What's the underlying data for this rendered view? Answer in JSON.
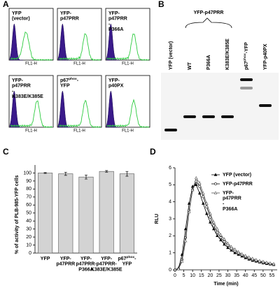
{
  "panels": {
    "a": {
      "letter": "A",
      "x_label": "FL1-H",
      "plots": [
        "YFP (vector)",
        "YFP-p47PRR",
        "YFP-p47PRR -P366A",
        "YFP-p47PRR -K383E/K385E",
        "p67phox-YFP",
        "YFP-p40PX"
      ]
    },
    "b": {
      "letter": "B",
      "group": "YFP-p47PRR",
      "lanes": [
        "YFP (vector)",
        "WT",
        "P366A",
        "K383E/K385E",
        "p67phox-YFP",
        "YFP-p40PX"
      ]
    },
    "c": {
      "letter": "C"
    },
    "d": {
      "letter": "D"
    }
  },
  "chart_data": [
    {
      "type": "bar",
      "y_label": "% of activity of PLB-985-YFP cells",
      "categories": [
        "YFP",
        "YFP-p47PRR",
        "YFP-p47PRR-P366A",
        "YFP-p47PRR-K383E/K385E",
        "p67phox-YFP"
      ],
      "values": [
        100,
        99,
        95,
        102,
        99
      ],
      "errors": [
        0.5,
        2,
        2.5,
        1,
        3
      ],
      "color": "#d3d3d3",
      "ylim": [
        0,
        110
      ],
      "yticks": [
        0,
        10,
        20,
        30,
        40,
        50,
        60,
        70,
        80,
        90,
        100
      ]
    },
    {
      "type": "line",
      "x_label": "Time (min)",
      "y_label": "RLU",
      "x": [
        0,
        2,
        4,
        6,
        8,
        10,
        12,
        14,
        16,
        18,
        20,
        22,
        24,
        26,
        28,
        30,
        32,
        34,
        36,
        38,
        40,
        42,
        44,
        46,
        48,
        50,
        52,
        54,
        56
      ],
      "series": [
        {
          "name": "YFP (vector)",
          "color": "#000000",
          "marker": "filled-triangle",
          "values": [
            0,
            0.1,
            0.9,
            2.4,
            3.9,
            4.9,
            5.0,
            4.5,
            3.9,
            3.3,
            2.8,
            2.4,
            2.0,
            1.75,
            1.5,
            1.3,
            1.15,
            1.0,
            0.9,
            0.8,
            0.7,
            0.62,
            0.55,
            0.5,
            0.45,
            0.4,
            0.36,
            0.33,
            0.3
          ]
        },
        {
          "name": "YFP-p47PRR",
          "color": "#000000",
          "marker": "open-circle",
          "values": [
            0,
            0.05,
            0.6,
            1.9,
            3.5,
            4.7,
            5.2,
            4.9,
            4.3,
            3.7,
            3.1,
            2.6,
            2.2,
            1.9,
            1.65,
            1.45,
            1.25,
            1.1,
            0.98,
            0.87,
            0.77,
            0.68,
            0.6,
            0.54,
            0.48,
            0.43,
            0.39,
            0.35,
            0.32
          ]
        },
        {
          "name": "YFP-p47PRR -P366A",
          "color": "#555555",
          "marker": "open-triangle",
          "values": [
            0,
            0.05,
            0.5,
            1.7,
            3.4,
            4.7,
            5.4,
            5.1,
            4.5,
            3.9,
            3.3,
            2.8,
            2.4,
            2.05,
            1.8,
            1.55,
            1.35,
            1.2,
            1.05,
            0.93,
            0.83,
            0.74,
            0.66,
            0.59,
            0.53,
            0.48,
            0.43,
            0.39,
            0.35
          ]
        }
      ],
      "xlim": [
        0,
        58
      ],
      "ylim": [
        0,
        6
      ],
      "xticks": [
        0,
        5,
        10,
        15,
        20,
        25,
        30,
        35,
        40,
        45,
        50,
        55
      ],
      "yticks": [
        0,
        1,
        2,
        3,
        4,
        5,
        6
      ]
    }
  ]
}
